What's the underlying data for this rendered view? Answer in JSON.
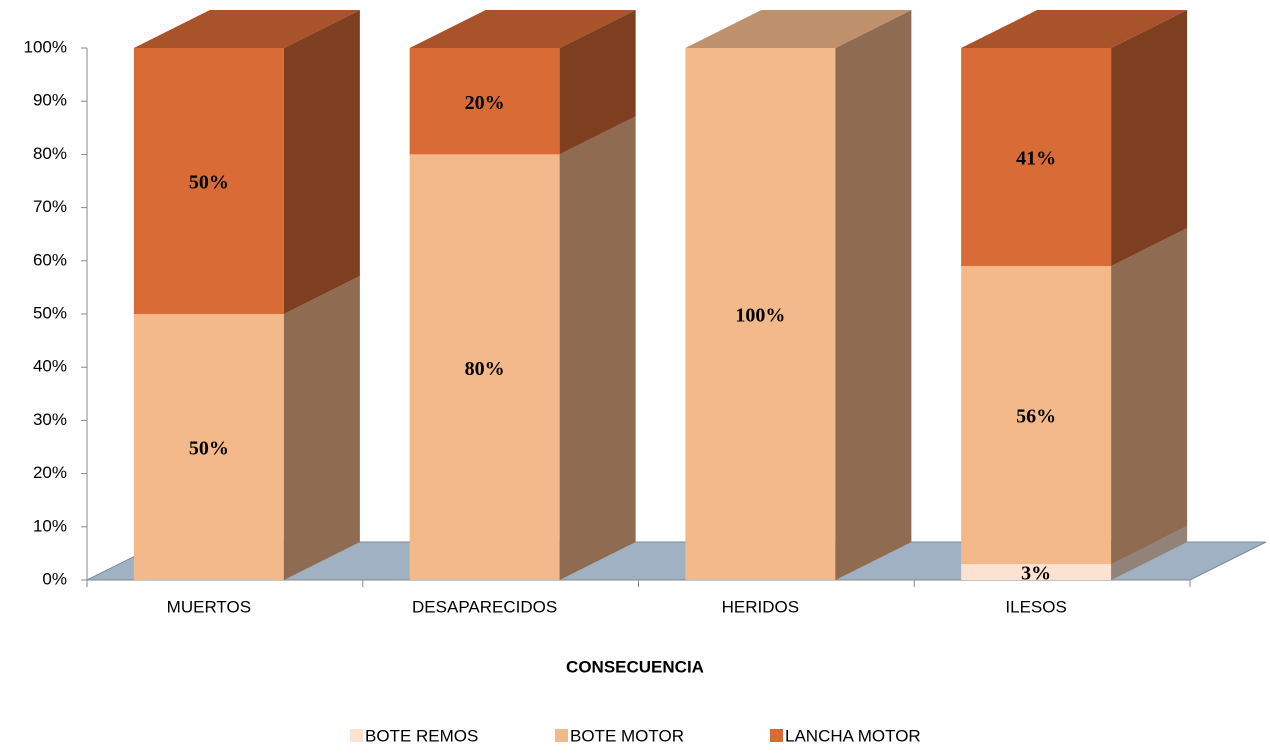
{
  "chart_data": {
    "type": "bar3d_stacked",
    "x_label": "CONSECUENCIA",
    "categories": [
      "MUERTOS",
      "DESAPARECIDOS",
      "HERIDOS",
      "ILESOS"
    ],
    "series": [
      {
        "name": "BOTE REMOS",
        "color": "#fce2d0",
        "label_color": "#d96b37",
        "values": [
          0,
          0,
          0,
          3
        ],
        "value_labels": [
          null,
          null,
          null,
          "3%"
        ]
      },
      {
        "name": "BOTE MOTOR",
        "color": "#f4b98b",
        "label_color": "#ffffff",
        "values": [
          50,
          80,
          100,
          56
        ],
        "value_labels": [
          "50%",
          "80%",
          "100%",
          "56%"
        ]
      },
      {
        "name": "LANCHA MOTOR",
        "color": "#d96b37",
        "label_color": "#ffffff",
        "values": [
          50,
          20,
          0,
          41
        ],
        "value_labels": [
          "50%",
          "20%",
          null,
          "41%"
        ]
      }
    ],
    "ylim": [
      0,
      100
    ],
    "yticks": [
      {
        "value": 0,
        "label": "0%"
      },
      {
        "value": 10,
        "label": "10%"
      },
      {
        "value": 20,
        "label": "20%"
      },
      {
        "value": 30,
        "label": "30%"
      },
      {
        "value": 40,
        "label": "40%"
      },
      {
        "value": 50,
        "label": "50%"
      },
      {
        "value": 60,
        "label": "60%"
      },
      {
        "value": 70,
        "label": "70%"
      },
      {
        "value": 80,
        "label": "80%"
      },
      {
        "value": 90,
        "label": "90%"
      },
      {
        "value": 100,
        "label": "100%"
      }
    ],
    "legend": "bottom"
  }
}
